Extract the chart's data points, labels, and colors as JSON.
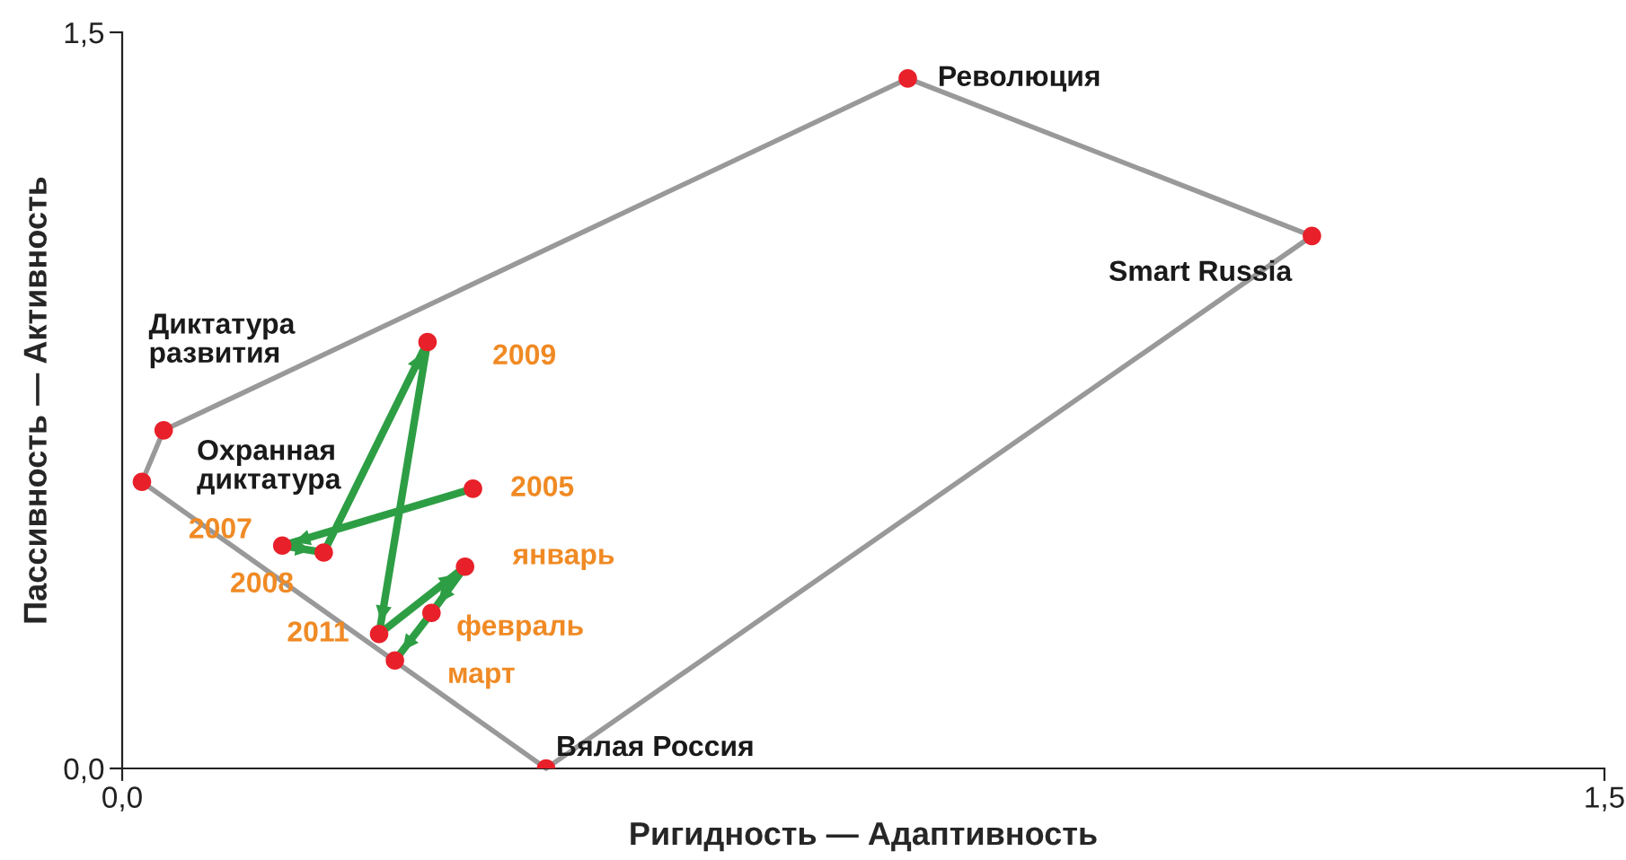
{
  "chart_data": {
    "type": "scatter",
    "xlabel": "Ригидность — Адаптивность",
    "ylabel": "Пассивность — Активность",
    "xlim": [
      0,
      1.5
    ],
    "ylim": [
      0,
      1.5
    ],
    "xticks": [
      {
        "value": 0,
        "label": "0,0"
      },
      {
        "value": 1.5,
        "label": "1,5"
      }
    ],
    "yticks": [
      {
        "value": 0,
        "label": "0,0"
      },
      {
        "value": 1.5,
        "label": "1,5"
      }
    ],
    "grid": false,
    "legend": false,
    "series": [
      {
        "type": "line",
        "color": "#999999",
        "marker": "none",
        "x": [
          0.02,
          0.042,
          0.795,
          1.204
        ],
        "values": [
          0.584,
          0.689,
          1.406,
          1.085
        ]
      },
      {
        "type": "line",
        "color": "#999999",
        "marker": "none",
        "x": [
          0.02,
          0.429,
          1.204
        ],
        "values": [
          0.584,
          0.0,
          1.085
        ]
      },
      {
        "type": "line",
        "color": "#2e9e45",
        "x": [
          0.355,
          0.162,
          0.204,
          0.309,
          0.26,
          0.347,
          0.313,
          0.276
        ],
        "values": [
          0.57,
          0.454,
          0.44,
          0.869,
          0.274,
          0.411,
          0.317,
          0.22
        ]
      },
      {
        "color": "#e8202a",
        "marker": "circle",
        "x": [
          0.795,
          1.204,
          0.429,
          0.042,
          0.02,
          0.355,
          0.162,
          0.204,
          0.309,
          0.26,
          0.347,
          0.313,
          0.276
        ],
        "values": [
          1.406,
          1.085,
          0.0,
          0.689,
          0.584,
          0.57,
          0.454,
          0.44,
          0.869,
          0.274,
          0.411,
          0.317,
          0.22
        ]
      }
    ],
    "annotations": [
      {
        "text": "Революция",
        "x": 0.795,
        "y": 1.406
      },
      {
        "text": "Smart Russia",
        "x": 1.204,
        "y": 1.085
      },
      {
        "text": "Вялая Россия",
        "x": 0.429,
        "y": 0.0
      },
      {
        "text": "Диктатура\nразвития",
        "x": 0.042,
        "y": 0.689
      },
      {
        "text": "Охранная\nдиктатура",
        "x": 0.02,
        "y": 0.584
      },
      {
        "text": "2005",
        "x": 0.355,
        "y": 0.57
      },
      {
        "text": "2007",
        "x": 0.162,
        "y": 0.454
      },
      {
        "text": "2008",
        "x": 0.204,
        "y": 0.44
      },
      {
        "text": "2009",
        "x": 0.309,
        "y": 0.869
      },
      {
        "text": "2011",
        "x": 0.26,
        "y": 0.274
      },
      {
        "text": "январь",
        "x": 0.347,
        "y": 0.411
      },
      {
        "text": "февраль",
        "x": 0.313,
        "y": 0.317
      },
      {
        "text": "март",
        "x": 0.276,
        "y": 0.22
      }
    ]
  }
}
